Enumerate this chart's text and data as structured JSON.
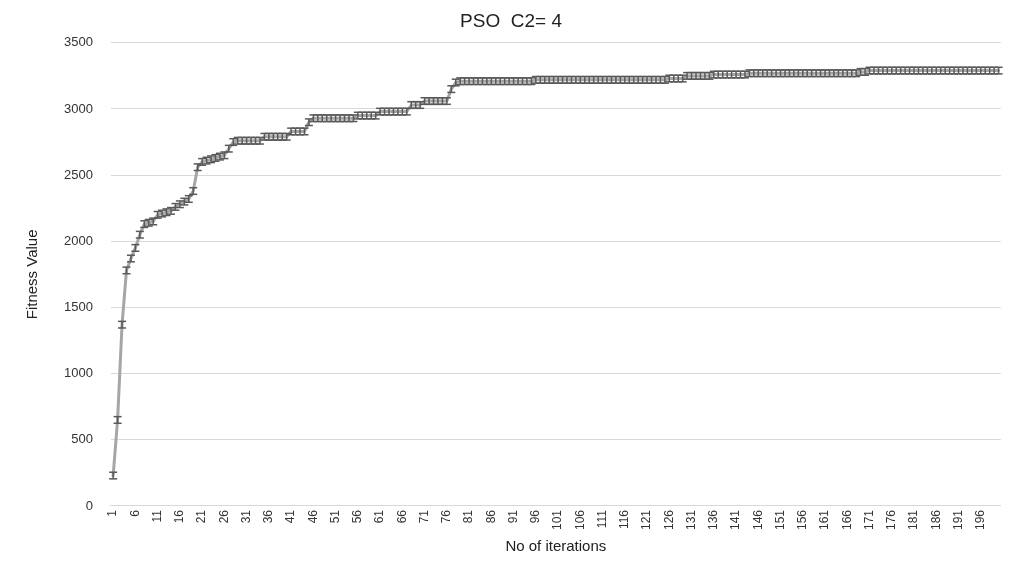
{
  "chart_data": {
    "type": "line",
    "title": "PSO  C2= 4",
    "xlabel": "No of iterations",
    "ylabel": "Fitness Value",
    "categories": [
      "1",
      null,
      null,
      null,
      null,
      "6",
      null,
      null,
      null,
      null,
      "11",
      null,
      null,
      null,
      null,
      "16",
      null,
      null,
      null,
      null,
      "21",
      null,
      null,
      null,
      null,
      "26",
      null,
      null,
      null,
      null,
      "31",
      null,
      null,
      null,
      null,
      "36",
      null,
      null,
      null,
      null,
      "41",
      null,
      null,
      null,
      null,
      "46",
      null,
      null,
      null,
      null,
      "51",
      null,
      null,
      null,
      null,
      "56",
      null,
      null,
      null,
      null,
      "61",
      null,
      null,
      null,
      null,
      "66",
      null,
      null,
      null,
      null,
      "71",
      null,
      null,
      null,
      null,
      "76",
      null,
      null,
      null,
      null,
      "81",
      null,
      null,
      null,
      null,
      "86",
      null,
      null,
      null,
      null,
      "91",
      null,
      null,
      null,
      null,
      "96",
      null,
      null,
      null,
      null,
      "101",
      null,
      null,
      null,
      null,
      "106",
      null,
      null,
      null,
      null,
      "111",
      null,
      null,
      null,
      null,
      "116",
      null,
      null,
      null,
      null,
      "121",
      null,
      null,
      null,
      null,
      "126",
      null,
      null,
      null,
      null,
      "131",
      null,
      null,
      null,
      null,
      "136",
      null,
      null,
      null,
      null,
      "141",
      null,
      null,
      null,
      null,
      "146",
      null,
      null,
      null,
      null,
      "151",
      null,
      null,
      null,
      null,
      "156",
      null,
      null,
      null,
      null,
      "161",
      null,
      null,
      null,
      null,
      "166",
      null,
      null,
      null,
      null,
      "171",
      null,
      null,
      null,
      null,
      "176",
      null,
      null,
      null,
      null,
      "181",
      null,
      null,
      null,
      null,
      "186",
      null,
      null,
      null,
      null,
      "191",
      null,
      null,
      null,
      null,
      "196",
      null,
      null,
      null,
      null
    ],
    "series": [
      {
        "color": "#a6a6a6",
        "values": [
          230,
          650,
          1370,
          1780,
          1870,
          1950,
          2050,
          2130,
          2140,
          2150,
          2200,
          2210,
          2220,
          2230,
          2260,
          2280,
          2300,
          2320,
          2380,
          2560,
          2600,
          2610,
          2620,
          2630,
          2640,
          2650,
          2700,
          2750,
          2760,
          2760,
          2760,
          2760,
          2760,
          2760,
          2790,
          2790,
          2790,
          2790,
          2790,
          2790,
          2830,
          2830,
          2830,
          2830,
          2900,
          2930,
          2930,
          2930,
          2930,
          2930,
          2930,
          2930,
          2930,
          2930,
          2930,
          2950,
          2950,
          2950,
          2950,
          2950,
          2980,
          2980,
          2980,
          2980,
          2980,
          2980,
          2980,
          3030,
          3030,
          3030,
          3060,
          3060,
          3060,
          3060,
          3060,
          3060,
          3150,
          3200,
          3210,
          3210,
          3210,
          3210,
          3210,
          3210,
          3210,
          3210,
          3210,
          3210,
          3210,
          3210,
          3210,
          3210,
          3210,
          3210,
          3210,
          3220,
          3220,
          3220,
          3220,
          3220,
          3220,
          3220,
          3220,
          3220,
          3220,
          3220,
          3220,
          3220,
          3220,
          3220,
          3220,
          3220,
          3220,
          3220,
          3220,
          3220,
          3220,
          3220,
          3220,
          3220,
          3220,
          3220,
          3220,
          3220,
          3220,
          3230,
          3230,
          3230,
          3230,
          3250,
          3250,
          3250,
          3250,
          3250,
          3250,
          3260,
          3260,
          3260,
          3260,
          3260,
          3260,
          3260,
          3260,
          3270,
          3270,
          3270,
          3270,
          3270,
          3270,
          3270,
          3270,
          3270,
          3270,
          3270,
          3270,
          3270,
          3270,
          3270,
          3270,
          3270,
          3270,
          3270,
          3270,
          3270,
          3270,
          3270,
          3270,
          3270,
          3280,
          3280,
          3290,
          3290,
          3290,
          3290,
          3290,
          3290,
          3290,
          3290,
          3290,
          3290,
          3290,
          3290,
          3290,
          3290,
          3290,
          3290,
          3290,
          3290,
          3290,
          3290,
          3290,
          3290,
          3290,
          3290,
          3290,
          3290,
          3290,
          3290,
          3290,
          3290
        ],
        "errors": [
          25,
          25,
          25,
          25,
          25,
          25,
          25,
          25,
          25,
          25,
          25,
          25,
          25,
          25,
          25,
          25,
          25,
          25,
          25,
          25,
          25,
          25,
          25,
          25,
          25,
          25,
          25,
          25,
          25,
          25,
          25,
          25,
          25,
          25,
          25,
          25,
          25,
          25,
          25,
          25,
          25,
          25,
          25,
          25,
          25,
          25,
          25,
          25,
          25,
          25,
          25,
          25,
          25,
          25,
          25,
          25,
          25,
          25,
          25,
          25,
          25,
          25,
          25,
          25,
          25,
          25,
          25,
          25,
          25,
          25,
          25,
          25,
          25,
          25,
          25,
          25,
          25,
          25,
          25,
          25,
          25,
          25,
          25,
          25,
          25,
          25,
          25,
          25,
          25,
          25,
          25,
          25,
          25,
          25,
          25,
          25,
          25,
          25,
          25,
          25,
          25,
          25,
          25,
          25,
          25,
          25,
          25,
          25,
          25,
          25,
          25,
          25,
          25,
          25,
          25,
          25,
          25,
          25,
          25,
          25,
          25,
          25,
          25,
          25,
          25,
          25,
          25,
          25,
          25,
          25,
          25,
          25,
          25,
          25,
          25,
          25,
          25,
          25,
          25,
          25,
          25,
          25,
          25,
          25,
          25,
          25,
          25,
          25,
          25,
          25,
          25,
          25,
          25,
          25,
          25,
          25,
          25,
          25,
          25,
          25,
          25,
          25,
          25,
          25,
          25,
          25,
          25,
          25,
          25,
          25,
          25,
          25,
          25,
          25,
          25,
          25,
          25,
          25,
          25,
          25,
          25,
          25,
          25,
          25,
          25,
          25,
          25,
          25,
          25,
          25,
          25,
          25,
          25,
          25,
          25,
          25,
          25,
          25,
          25,
          25
        ]
      }
    ],
    "ylim": [
      0,
      3500
    ],
    "yticks": [
      0,
      500,
      1000,
      1500,
      2000,
      2500,
      3000,
      3500
    ],
    "grid": "y",
    "legend": false,
    "line_style": "solid"
  }
}
